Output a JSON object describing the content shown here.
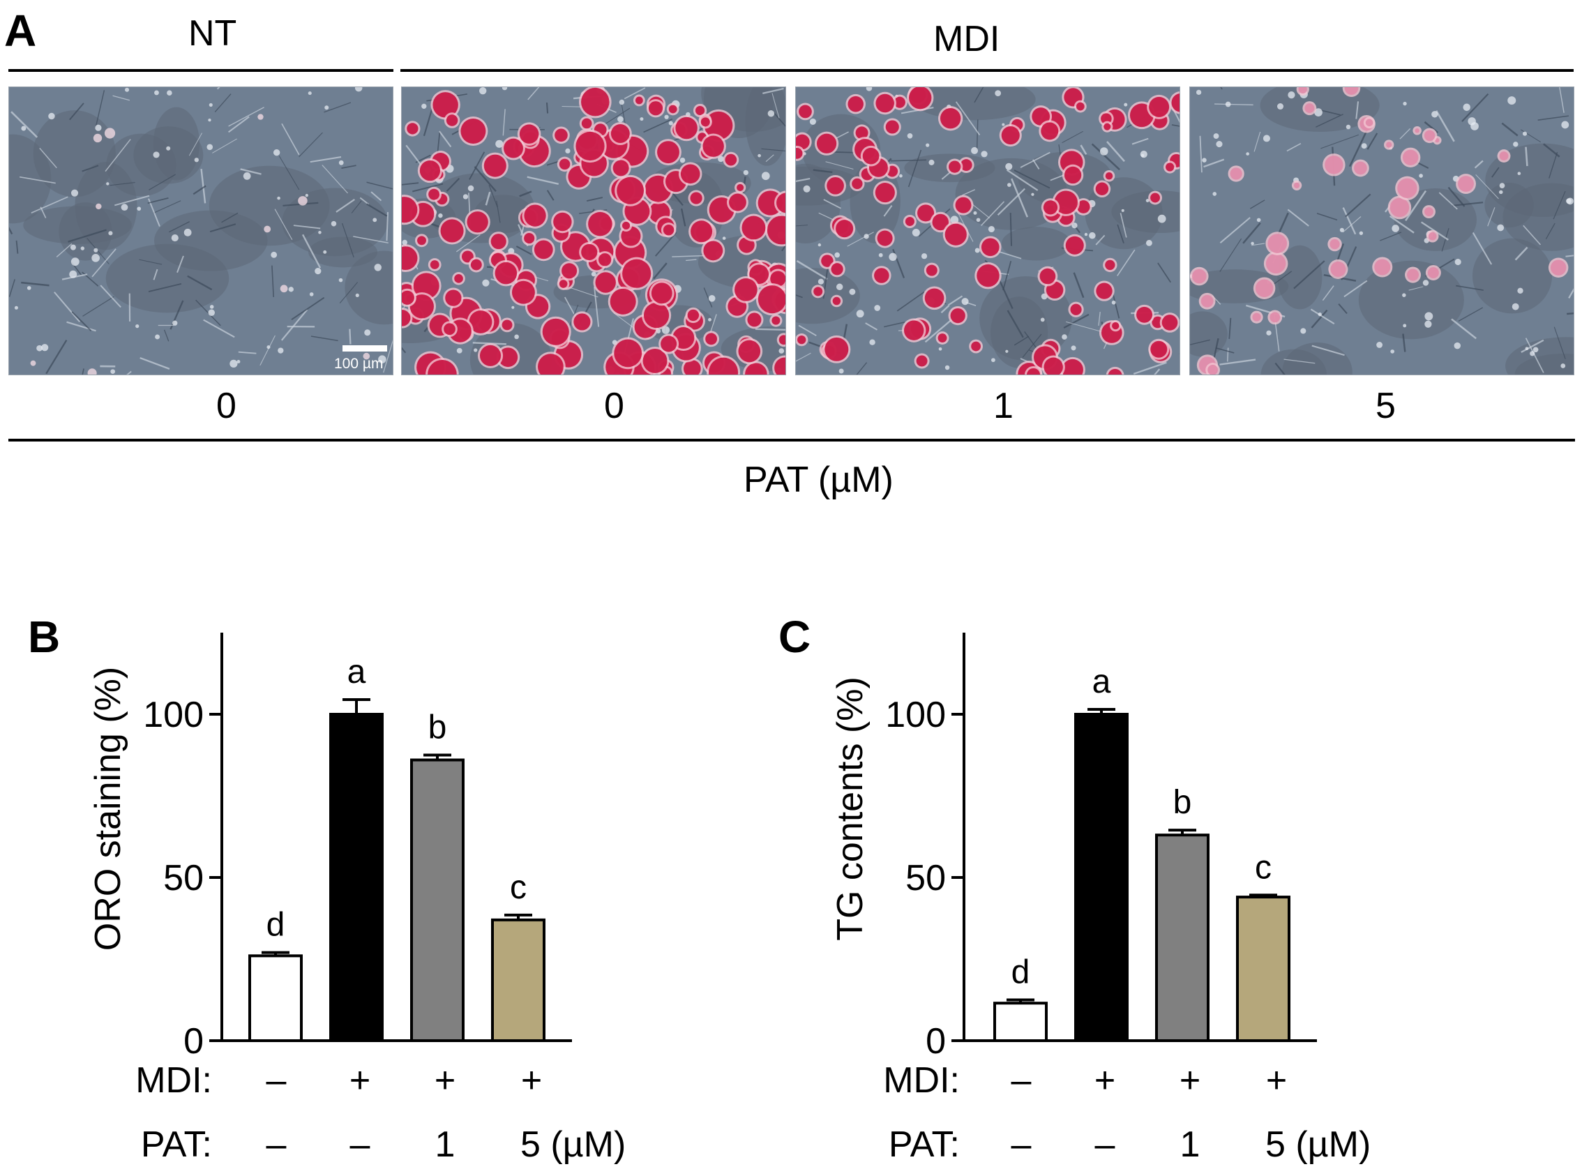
{
  "panel_a": {
    "letter": "A",
    "group_nt": "NT",
    "group_mdi": "MDI",
    "images": [
      {
        "dose": "0",
        "stain": "none",
        "red_color": "#e0457a"
      },
      {
        "dose": "0",
        "stain": "heavy",
        "red_color": "#c8103e"
      },
      {
        "dose": "1",
        "stain": "medium",
        "red_color": "#c8103e"
      },
      {
        "dose": "5",
        "stain": "light",
        "red_color": "#e08aa8"
      }
    ],
    "scale_bar_label": "100 µm",
    "axis_label": "PAT (µM)",
    "background_color": "#6f7f92"
  },
  "chart_data": [
    {
      "type": "bar",
      "panel_letter": "B",
      "ylabel": "ORO staining (%)",
      "ylim": [
        0,
        125
      ],
      "yticks": [
        0,
        50,
        100
      ],
      "categories": [
        "NT",
        "MDI",
        "MDI + PAT 1",
        "MDI + PAT 5"
      ],
      "values": [
        26,
        100,
        86,
        37
      ],
      "errors": [
        1,
        4.5,
        1.5,
        1.5
      ],
      "significance": [
        "d",
        "a",
        "b",
        "c"
      ],
      "colors": [
        "#ffffff",
        "#000000",
        "#808080",
        "#b5a77b"
      ],
      "row_labels": {
        "mdi": "MDI:",
        "pat": "PAT:"
      },
      "mdi_row": [
        "–",
        "+",
        "+",
        "+"
      ],
      "pat_row": [
        "–",
        "–",
        "1",
        "5 (µM)"
      ]
    },
    {
      "type": "bar",
      "panel_letter": "C",
      "ylabel": "TG contents (%)",
      "ylim": [
        0,
        125
      ],
      "yticks": [
        0,
        50,
        100
      ],
      "categories": [
        "NT",
        "MDI",
        "MDI + PAT 1",
        "MDI + PAT 5"
      ],
      "values": [
        11.5,
        100,
        63,
        44
      ],
      "errors": [
        1,
        1.5,
        1.5,
        0.6
      ],
      "significance": [
        "d",
        "a",
        "b",
        "c"
      ],
      "colors": [
        "#ffffff",
        "#000000",
        "#808080",
        "#b5a77b"
      ],
      "row_labels": {
        "mdi": "MDI:",
        "pat": "PAT:"
      },
      "mdi_row": [
        "–",
        "+",
        "+",
        "+"
      ],
      "pat_row": [
        "–",
        "–",
        "1",
        "5 (µM)"
      ]
    }
  ]
}
